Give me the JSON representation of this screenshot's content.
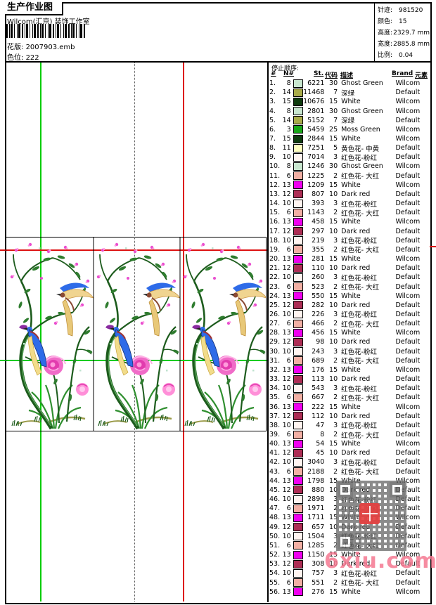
{
  "header": {
    "title": "生产作业图",
    "studio": "Wilcom(汇京) 装饰工作室",
    "pattern_label": "花版:",
    "pattern_value": "2007903.emb",
    "colorway_label": "色位:",
    "colorway_value": "222"
  },
  "info": {
    "rows": [
      {
        "label": "针迹:",
        "value": "981520"
      },
      {
        "label": "颜色:",
        "value": "15"
      },
      {
        "label": "高度:",
        "value": "2329.7 mm"
      },
      {
        "label": "宽度:",
        "value": "2885.8 mm"
      },
      {
        "label": "比例:",
        "value": "0.04"
      }
    ]
  },
  "table": {
    "section_label": "停止顺序:",
    "columns": [
      "#",
      "N#",
      "St.",
      "代码",
      "描述",
      "Brand",
      "元素"
    ],
    "needle_colors": {
      "3": "#18A818",
      "6": "#F2AFA4",
      "8": "#C8E6CF",
      "10": "#FFF4F0",
      "11": "#FFFFC0",
      "12": "#AD2D55",
      "13": "#F000F0",
      "14": "#A9AC4A",
      "15": "#0E3B0E"
    },
    "rows": [
      [
        1,
        8,
        6221,
        30,
        "Ghost Green",
        "Wilcom"
      ],
      [
        2,
        14,
        11468,
        7,
        "深绿",
        "Default"
      ],
      [
        3,
        15,
        10676,
        15,
        "White",
        "Wilcom"
      ],
      [
        4,
        8,
        2801,
        30,
        "Ghost Green",
        "Wilcom"
      ],
      [
        5,
        14,
        5152,
        7,
        "深绿",
        "Default"
      ],
      [
        6,
        3,
        5459,
        25,
        "Moss Green",
        "Wilcom"
      ],
      [
        7,
        15,
        2844,
        15,
        "White",
        "Wilcom"
      ],
      [
        8,
        11,
        7251,
        5,
        "黄色花- 中黄",
        "Default"
      ],
      [
        9,
        10,
        7014,
        3,
        "红色花-粉红",
        "Default"
      ],
      [
        10,
        8,
        1246,
        30,
        "Ghost Green",
        "Wilcom"
      ],
      [
        11,
        6,
        1225,
        2,
        "红色花- 大红",
        "Default"
      ],
      [
        12,
        13,
        1209,
        15,
        "White",
        "Wilcom"
      ],
      [
        13,
        12,
        807,
        10,
        "Dark red",
        "Default"
      ],
      [
        14,
        10,
        393,
        3,
        "红色花-粉红",
        "Default"
      ],
      [
        15,
        6,
        1143,
        2,
        "红色花- 大红",
        "Default"
      ],
      [
        16,
        13,
        458,
        15,
        "White",
        "Wilcom"
      ],
      [
        17,
        12,
        297,
        10,
        "Dark red",
        "Default"
      ],
      [
        18,
        10,
        219,
        3,
        "红色花-粉红",
        "Default"
      ],
      [
        19,
        6,
        355,
        2,
        "红色花- 大红",
        "Default"
      ],
      [
        20,
        13,
        281,
        15,
        "White",
        "Wilcom"
      ],
      [
        21,
        12,
        110,
        10,
        "Dark red",
        "Default"
      ],
      [
        22,
        10,
        260,
        3,
        "红色花-粉红",
        "Default"
      ],
      [
        23,
        6,
        523,
        2,
        "红色花- 大红",
        "Default"
      ],
      [
        24,
        13,
        550,
        15,
        "White",
        "Wilcom"
      ],
      [
        25,
        12,
        282,
        10,
        "Dark red",
        "Default"
      ],
      [
        26,
        10,
        226,
        3,
        "红色花-粉红",
        "Default"
      ],
      [
        27,
        6,
        466,
        2,
        "红色花- 大红",
        "Default"
      ],
      [
        28,
        13,
        456,
        15,
        "White",
        "Wilcom"
      ],
      [
        29,
        12,
        98,
        10,
        "Dark red",
        "Default"
      ],
      [
        30,
        10,
        243,
        3,
        "红色花-粉红",
        "Default"
      ],
      [
        31,
        6,
        689,
        2,
        "红色花- 大红",
        "Default"
      ],
      [
        32,
        13,
        176,
        15,
        "White",
        "Wilcom"
      ],
      [
        33,
        12,
        113,
        10,
        "Dark red",
        "Default"
      ],
      [
        34,
        10,
        543,
        3,
        "红色花-粉红",
        "Default"
      ],
      [
        35,
        6,
        667,
        2,
        "红色花- 大红",
        "Default"
      ],
      [
        36,
        13,
        222,
        15,
        "White",
        "Wilcom"
      ],
      [
        37,
        12,
        112,
        10,
        "Dark red",
        "Default"
      ],
      [
        38,
        10,
        47,
        3,
        "红色花-粉红",
        "Default"
      ],
      [
        39,
        6,
        8,
        2,
        "红色花- 大红",
        "Default"
      ],
      [
        40,
        13,
        54,
        15,
        "White",
        "Wilcom"
      ],
      [
        41,
        12,
        45,
        10,
        "Dark red",
        "Default"
      ],
      [
        42,
        10,
        3040,
        3,
        "红色花-粉红",
        "Default"
      ],
      [
        43,
        6,
        2188,
        2,
        "红色花- 大红",
        "Default"
      ],
      [
        44,
        13,
        1798,
        15,
        "White",
        "Wilcom"
      ],
      [
        45,
        12,
        880,
        10,
        "Dark red",
        "Default"
      ],
      [
        46,
        10,
        2898,
        3,
        "红色花-粉红",
        "Default"
      ],
      [
        47,
        6,
        1971,
        2,
        "红色花- 大红",
        "Default"
      ],
      [
        48,
        13,
        1711,
        15,
        "White",
        "Wilcom"
      ],
      [
        49,
        12,
        657,
        10,
        "Dark red",
        "Default"
      ],
      [
        50,
        10,
        1504,
        3,
        "红色花-粉红",
        "Default"
      ],
      [
        51,
        6,
        1285,
        2,
        "红色花- 大红",
        "Default"
      ],
      [
        52,
        13,
        1150,
        15,
        "White",
        "Wilcom"
      ],
      [
        53,
        12,
        308,
        10,
        "Dark red",
        "Default"
      ],
      [
        54,
        10,
        757,
        3,
        "红色花-粉红",
        "Default"
      ],
      [
        55,
        6,
        551,
        2,
        "红色花- 大红",
        "Default"
      ],
      [
        56,
        13,
        276,
        15,
        "White",
        "Wilcom"
      ]
    ]
  },
  "design": {
    "branch_color": "#1D5C1D",
    "leaf_color": "#2F7D2F",
    "blossom_color": "#E94ECF",
    "peony_color": "#F06CC8",
    "bird_blue": "#2E6BE8",
    "bird_yellow": "#F0D490",
    "grass_olive": "#9B9B4A",
    "guide_green": "#00CC00",
    "guide_red": "#DD1111"
  },
  "watermark": {
    "text": "6xiu.com"
  }
}
